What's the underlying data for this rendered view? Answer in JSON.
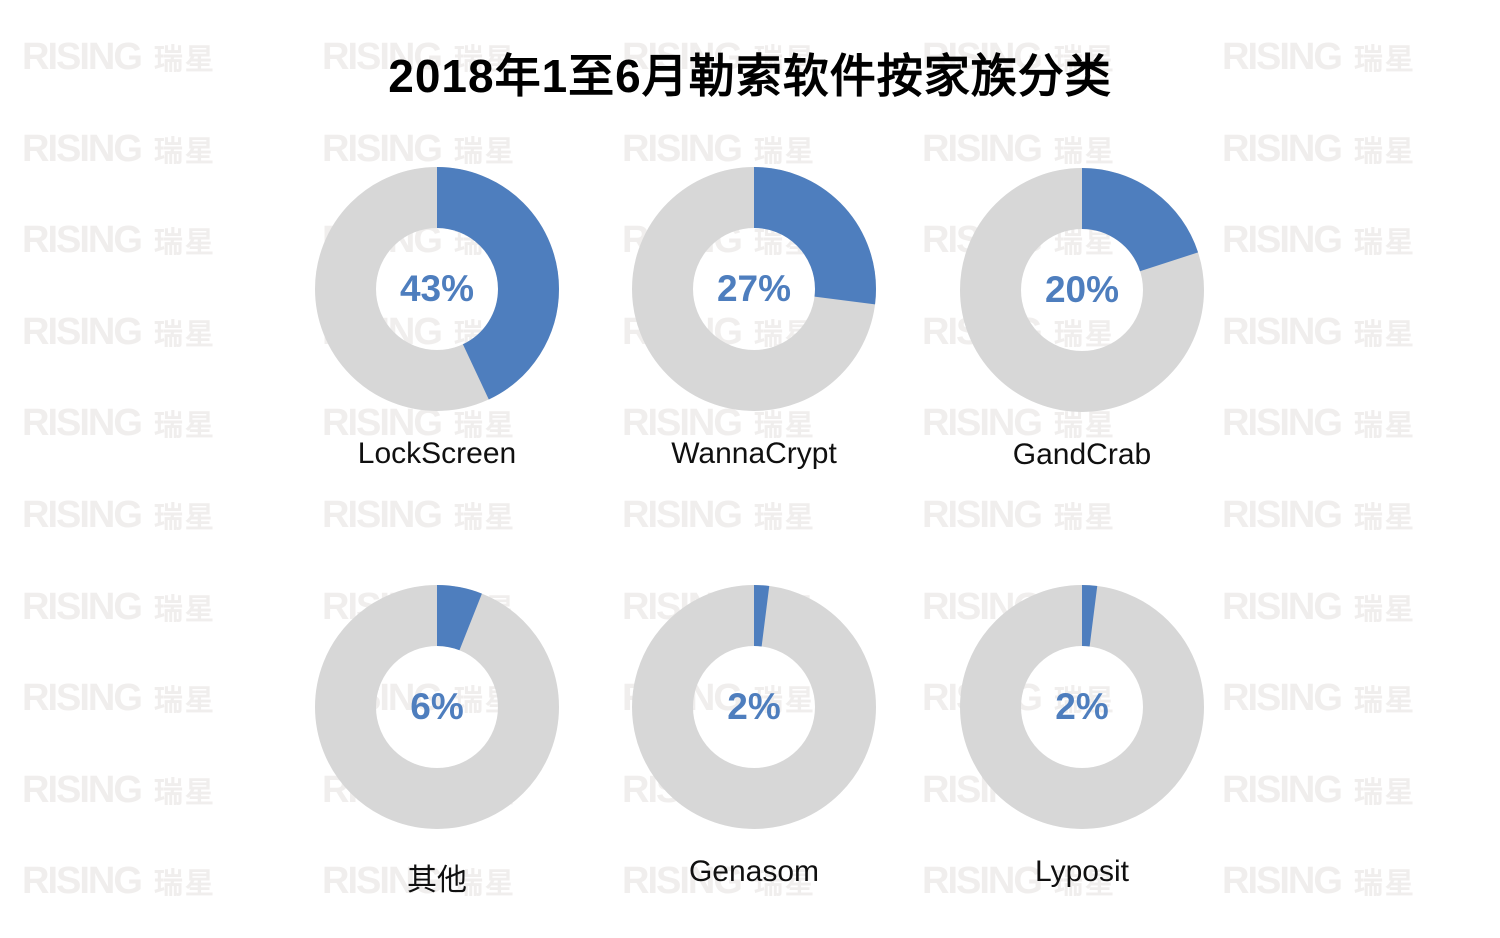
{
  "title": "2018年1至6月勒索软件按家族分类",
  "watermark": {
    "text_en": "RISING",
    "text_cn": "瑞星"
  },
  "colors": {
    "accent_blue": "#4e7ebe",
    "ring_gray": "#d7d7d7",
    "watermark_gray": "#f0eeed",
    "title_black": "#000000"
  },
  "chart_data": {
    "type": "pie",
    "subtype": "donut-small-multiples",
    "title": "2018年1至6月勒索软件按家族分类",
    "unit": "%",
    "legend_position": "none",
    "grid": false,
    "rings": {
      "outer_radius_px": 122,
      "inner_radius_px": 61,
      "start_angle_deg": 0,
      "direction": "clockwise"
    },
    "items": [
      {
        "label": "LockScreen",
        "value": 43,
        "display": "43%"
      },
      {
        "label": "WannaCrypt",
        "value": 27,
        "display": "27%"
      },
      {
        "label": "GandCrab",
        "value": 20,
        "display": "20%"
      },
      {
        "label": "其他",
        "value": 6,
        "display": "6%"
      },
      {
        "label": "Genasom",
        "value": 2,
        "display": "2%"
      },
      {
        "label": "Lyposit",
        "value": 2,
        "display": "2%"
      }
    ]
  }
}
